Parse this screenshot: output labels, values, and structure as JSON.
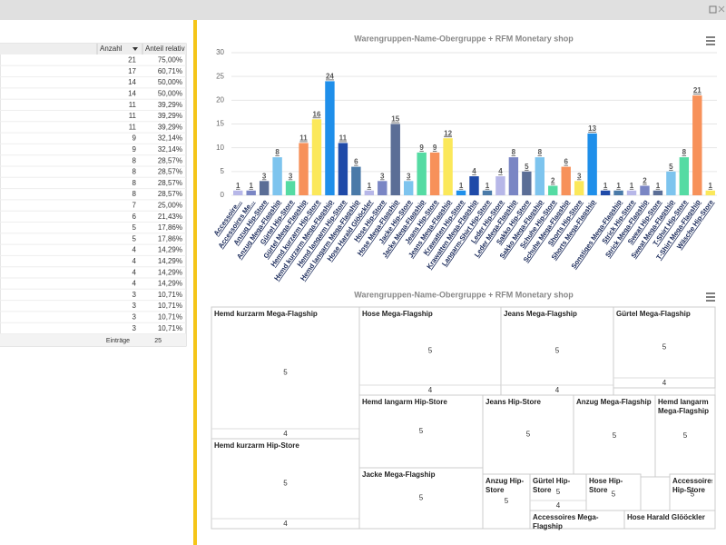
{
  "table": {
    "headers": [
      "Anzahl",
      "Anteil relativ"
    ],
    "rows": [
      [
        21,
        "75,00%"
      ],
      [
        17,
        "60,71%"
      ],
      [
        14,
        "50,00%"
      ],
      [
        14,
        "50,00%"
      ],
      [
        11,
        "39,29%"
      ],
      [
        11,
        "39,29%"
      ],
      [
        11,
        "39,29%"
      ],
      [
        9,
        "32,14%"
      ],
      [
        9,
        "32,14%"
      ],
      [
        8,
        "28,57%"
      ],
      [
        8,
        "28,57%"
      ],
      [
        8,
        "28,57%"
      ],
      [
        8,
        "28,57%"
      ],
      [
        7,
        "25,00%"
      ],
      [
        6,
        "21,43%"
      ],
      [
        5,
        "17,86%"
      ],
      [
        5,
        "17,86%"
      ],
      [
        4,
        "14,29%"
      ],
      [
        4,
        "14,29%"
      ],
      [
        4,
        "14,29%"
      ],
      [
        4,
        "14,29%"
      ],
      [
        3,
        "10,71%"
      ],
      [
        3,
        "10,71%"
      ],
      [
        3,
        "10,71%"
      ],
      [
        3,
        "10,71%"
      ]
    ],
    "footer": {
      "label": "Einträge",
      "value": 25
    }
  },
  "chart_data": [
    {
      "type": "bar",
      "title": "Warengruppen-Name-Obergruppe + RFM Monetary shop",
      "categories": [
        "Accessoire...",
        "Accessoires Me...",
        "Anzug Hip-Store",
        "Anzug Mega-Flagship",
        "Gürtel Hip-Store",
        "Gürtel Mega-Flagship",
        "Hemd kurzarm Hip-Store",
        "Hemd kurzarm Mega-Flagship",
        "Hemd langarm Hip-Store",
        "Hemd langarm Mega-Flagship",
        "Hose Harald Glööckler",
        "Hose Hip-Store",
        "Hose Mega-Flagship",
        "Jacke Hip-Store",
        "Jacke Mega-Flagship",
        "Jeans Hip-Store",
        "Jeans Mega-Flagship",
        "Krawatten Hip-Store",
        "Krawatten Mega-Flagship",
        "Langarm-Shirt Hip-Store",
        "Leder Hip-Store",
        "Leder Mega-Flagship",
        "Sakko Hip-Store",
        "Sakko Mega-Flagship",
        "Schuhe Hip-Store",
        "Schuhe Mega-Flagship",
        "Shorts Hip-Store",
        "Shorts Mega-Flagship",
        null,
        "Sonstiges Mega-Flagship",
        "Strick Hip-Store",
        "Strick Mega-Flagship",
        "Sweat Hip-Store",
        "Sweat Mega-Flagship",
        "T-Shirt Hip-Store",
        "T-Shirt Mega-Flagship",
        "Wäsche Hip-Store"
      ],
      "values": [
        1,
        1,
        3,
        8,
        3,
        11,
        16,
        24,
        11,
        6,
        1,
        3,
        15,
        3,
        9,
        9,
        12,
        1,
        4,
        1,
        4,
        8,
        5,
        8,
        2,
        6,
        3,
        13,
        1,
        1,
        1,
        2,
        1,
        5,
        8,
        21,
        1
      ],
      "colors": [
        "#b7b7e8",
        "#7a86c4",
        "#5b6e96",
        "#7dc4ee",
        "#55dba3",
        "#f7915a",
        "#fbe85a",
        "#1f8fea",
        "#1f4aa8",
        "#4a7aa8"
      ],
      "ylim": [
        0,
        30
      ],
      "yticks": [
        0,
        5,
        10,
        15,
        20,
        25,
        30
      ],
      "grid": true
    },
    {
      "type": "treemap",
      "title": "Warengruppen-Name-Obergruppe + RFM Monetary shop",
      "tiles": [
        {
          "label": "Hemd kurzarm Mega-Flagship",
          "value": 5,
          "sub_value": 4
        },
        {
          "label": "Hose Mega-Flagship",
          "value": 5,
          "sub_value": 4
        },
        {
          "label": "Jeans Mega-Flagship",
          "value": 5,
          "sub_value": 4
        },
        {
          "label": "Gürtel Mega-Flagship",
          "value": 5,
          "sub_value": 4
        },
        {
          "label": "Hemd kurzarm Hip-Store",
          "value": 5,
          "sub_value": 4
        },
        {
          "label": "Hemd langarm Hip-Store",
          "value": 5
        },
        {
          "label": "Jeans Hip-Store",
          "value": 5
        },
        {
          "label": "Anzug Mega-Flagship",
          "value": 5
        },
        {
          "label": "Hemd langarm Mega-Flagship",
          "value": 5
        },
        {
          "label": "Jacke Mega-Flagship",
          "value": 5
        },
        {
          "label": "Anzug Hip-Store",
          "value": 5
        },
        {
          "label": "Gürtel Hip-Store",
          "value": 5,
          "sub_value": 4
        },
        {
          "label": "Hose Hip-Store",
          "value": 5
        },
        {
          "label": "Accessoires Hip-Store",
          "value": 5
        },
        {
          "label": "Accessoires Mega-Flagship"
        },
        {
          "label": "Hose Harald Glööckler"
        }
      ]
    }
  ]
}
